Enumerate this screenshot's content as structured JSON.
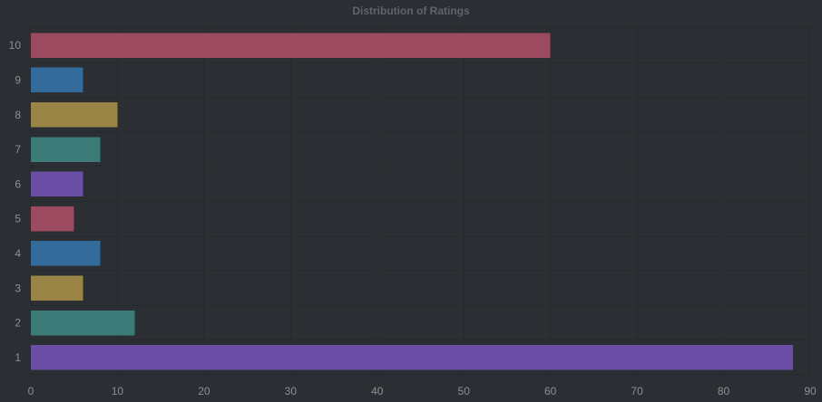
{
  "chart_data": {
    "type": "bar",
    "orientation": "horizontal",
    "title": "Distribution of Ratings",
    "xlabel": "",
    "ylabel": "",
    "categories": [
      "10",
      "9",
      "8",
      "7",
      "6",
      "5",
      "4",
      "3",
      "2",
      "1"
    ],
    "values": [
      60,
      6,
      10,
      8,
      6,
      5,
      8,
      6,
      12,
      88
    ],
    "xlim": [
      0,
      90
    ],
    "x_ticks": [
      "0",
      "10",
      "20",
      "30",
      "40",
      "50",
      "60",
      "70",
      "80",
      "90"
    ],
    "grid": true,
    "legend": "none",
    "colors": [
      "#9c4a5f",
      "#336b9a",
      "#9a8446",
      "#3d7b78",
      "#6b4fa6",
      "#9c4a5f",
      "#336b9a",
      "#9a8446",
      "#3d7b78",
      "#6b4fa6"
    ],
    "background": "#2b2f33"
  }
}
